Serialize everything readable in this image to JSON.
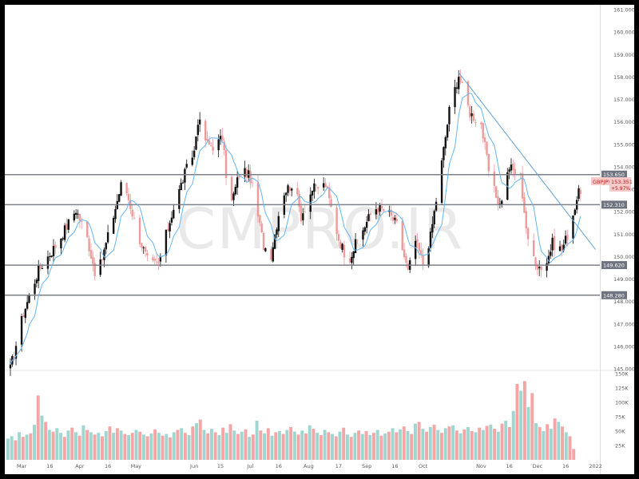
{
  "watermark": "CMPRO.IR",
  "colors": {
    "up": "#ef9a9a",
    "down": "#111111",
    "up_volume": "#f4a6a6",
    "down_volume": "#9fd6cf",
    "ma": "#64b5f6",
    "trendline": "#5f9fd6",
    "level_line": "#7e8088",
    "level_tag": "#6f7380",
    "price_tag": "#f7c9c9"
  },
  "price_tag": {
    "symbol": "GBPJPY",
    "price": "153.351",
    "change": "+5.97%"
  },
  "chart_data": [
    {
      "type": "candlestick",
      "description": "GBP/JPY daily candles",
      "ylim": [
        145.0,
        161.0
      ],
      "yticks": [
        145,
        146,
        147,
        148,
        149,
        150,
        151,
        152,
        153,
        154,
        155,
        156,
        157,
        158,
        159,
        160,
        161
      ],
      "ytick_labels": [
        "145.000",
        "146.000",
        "147.000",
        "148.000",
        "149.000",
        "150.000",
        "151.000",
        "152.000",
        "153.000",
        "154.000",
        "155.000",
        "156.000",
        "157.000",
        "158.000",
        "159.000",
        "160.000",
        "161.000"
      ],
      "xtick_labels": [
        "Mar",
        "16",
        "Apr",
        "16",
        "May",
        "Jun",
        "15",
        "Jul",
        "16",
        "Aug",
        "17",
        "Sep",
        "16",
        "Oct",
        "Nov",
        "16",
        "Dec",
        "16",
        "2022"
      ],
      "horizontal_levels": [
        {
          "value": 153.65,
          "label": "153.650"
        },
        {
          "value": 152.31,
          "label": "152.310"
        },
        {
          "value": 149.62,
          "label": "149.620"
        },
        {
          "value": 148.28,
          "label": "148.280"
        }
      ],
      "trendline": {
        "from": {
          "date": "Oct 20",
          "price": 158.2
        },
        "to": {
          "date": "Dec 26",
          "price": 150.6
        }
      },
      "anchors": [
        [
          "Feb 23",
          145.0
        ],
        [
          "Mar 2",
          147.5
        ],
        [
          "Mar 10",
          149.4
        ],
        [
          "Mar 20",
          150.6
        ],
        [
          "Mar 30",
          152.1
        ],
        [
          "Apr 5",
          150.8
        ],
        [
          "Apr 10",
          149.0
        ],
        [
          "Apr 18",
          151.5
        ],
        [
          "Apr 24",
          153.5
        ],
        [
          "May 2",
          151.0
        ],
        [
          "May 8",
          149.6
        ],
        [
          "May 13",
          149.7
        ],
        [
          "May 20",
          151.9
        ],
        [
          "May 27",
          153.7
        ],
        [
          "Jun 1",
          154.7
        ],
        [
          "Jun 3",
          156.1
        ],
        [
          "Jun 8",
          155.0
        ],
        [
          "Jun 12",
          154.9
        ],
        [
          "Jun 16",
          155.3
        ],
        [
          "Jun 20",
          152.1
        ],
        [
          "Jun 26",
          154.0
        ],
        [
          "Jul 1",
          153.5
        ],
        [
          "Jul 8",
          150.5
        ],
        [
          "Jul 12",
          150.1
        ],
        [
          "Jul 18",
          152.8
        ],
        [
          "Jul 24",
          153.3
        ],
        [
          "Jul 28",
          151.8
        ],
        [
          "Aug 3",
          153.0
        ],
        [
          "Aug 10",
          153.2
        ],
        [
          "Aug 17",
          150.8
        ],
        [
          "Aug 22",
          149.8
        ],
        [
          "Aug 28",
          150.9
        ],
        [
          "Sep 5",
          152.2
        ],
        [
          "Sep 12",
          152.0
        ],
        [
          "Sep 17",
          151.4
        ],
        [
          "Sep 23",
          149.3
        ],
        [
          "Sep 27",
          150.7
        ],
        [
          "Oct 1",
          149.7
        ],
        [
          "Oct 5",
          150.9
        ],
        [
          "Oct 10",
          153.6
        ],
        [
          "Oct 15",
          156.5
        ],
        [
          "Oct 20",
          158.1
        ],
        [
          "Oct 26",
          156.4
        ],
        [
          "Nov 1",
          155.9
        ],
        [
          "Nov 6",
          153.3
        ],
        [
          "Nov 11",
          152.3
        ],
        [
          "Nov 16",
          154.0
        ],
        [
          "Nov 22",
          153.5
        ],
        [
          "Nov 26",
          150.6
        ],
        [
          "Dec 1",
          149.6
        ],
        [
          "Dec 5",
          149.5
        ],
        [
          "Dec 9",
          150.6
        ],
        [
          "Dec 14",
          150.3
        ],
        [
          "Dec 18",
          151.2
        ],
        [
          "Dec 22",
          152.6
        ],
        [
          "Dec 26",
          153.4
        ]
      ]
    },
    {
      "type": "bar",
      "description": "daily volume",
      "ylim": [
        0,
        150000
      ],
      "yticks": [
        25000,
        50000,
        75000,
        100000,
        125000,
        150000
      ],
      "ytick_labels": [
        "25K",
        "50K",
        "75K",
        "100K",
        "125K",
        "150K"
      ],
      "bars": [
        [
          37000,
          "d"
        ],
        [
          41000,
          "d"
        ],
        [
          34000,
          "u"
        ],
        [
          48000,
          "d"
        ],
        [
          40000,
          "u"
        ],
        [
          44000,
          "d"
        ],
        [
          46000,
          "u"
        ],
        [
          61000,
          "d"
        ],
        [
          112000,
          "u"
        ],
        [
          77000,
          "d"
        ],
        [
          66000,
          "u"
        ],
        [
          52000,
          "d"
        ],
        [
          49000,
          "u"
        ],
        [
          55000,
          "d"
        ],
        [
          47000,
          "d"
        ],
        [
          40000,
          "u"
        ],
        [
          51000,
          "d"
        ],
        [
          56000,
          "u"
        ],
        [
          48000,
          "d"
        ],
        [
          42000,
          "u"
        ],
        [
          60000,
          "d"
        ],
        [
          52000,
          "u"
        ],
        [
          48000,
          "d"
        ],
        [
          44000,
          "u"
        ],
        [
          47000,
          "d"
        ],
        [
          41000,
          "u"
        ],
        [
          50000,
          "d"
        ],
        [
          58000,
          "u"
        ],
        [
          47000,
          "d"
        ],
        [
          55000,
          "u"
        ],
        [
          51000,
          "d"
        ],
        [
          45000,
          "u"
        ],
        [
          43000,
          "d"
        ],
        [
          47000,
          "u"
        ],
        [
          52000,
          "d"
        ],
        [
          49000,
          "u"
        ],
        [
          44000,
          "d"
        ],
        [
          41000,
          "u"
        ],
        [
          46000,
          "d"
        ],
        [
          53000,
          "u"
        ],
        [
          47000,
          "d"
        ],
        [
          42000,
          "u"
        ],
        [
          45000,
          "d"
        ],
        [
          39000,
          "u"
        ],
        [
          48000,
          "d"
        ],
        [
          52000,
          "u"
        ],
        [
          55000,
          "d"
        ],
        [
          47000,
          "u"
        ],
        [
          43000,
          "d"
        ],
        [
          58000,
          "u"
        ],
        [
          64000,
          "d"
        ],
        [
          70000,
          "u"
        ],
        [
          52000,
          "d"
        ],
        [
          46000,
          "u"
        ],
        [
          54000,
          "d"
        ],
        [
          48000,
          "u"
        ],
        [
          43000,
          "d"
        ],
        [
          56000,
          "u"
        ],
        [
          47000,
          "d"
        ],
        [
          62000,
          "u"
        ],
        [
          51000,
          "d"
        ],
        [
          45000,
          "u"
        ],
        [
          49000,
          "d"
        ],
        [
          53000,
          "u"
        ],
        [
          40000,
          "d"
        ],
        [
          44000,
          "u"
        ],
        [
          68000,
          "d"
        ],
        [
          51000,
          "u"
        ],
        [
          46000,
          "d"
        ],
        [
          55000,
          "u"
        ],
        [
          42000,
          "d"
        ],
        [
          48000,
          "u"
        ],
        [
          50000,
          "d"
        ],
        [
          45000,
          "u"
        ],
        [
          52000,
          "d"
        ],
        [
          57000,
          "u"
        ],
        [
          49000,
          "d"
        ],
        [
          44000,
          "u"
        ],
        [
          51000,
          "d"
        ],
        [
          46000,
          "u"
        ],
        [
          60000,
          "d"
        ],
        [
          54000,
          "u"
        ],
        [
          47000,
          "d"
        ],
        [
          43000,
          "u"
        ],
        [
          52000,
          "d"
        ],
        [
          48000,
          "u"
        ],
        [
          45000,
          "d"
        ],
        [
          41000,
          "u"
        ],
        [
          49000,
          "d"
        ],
        [
          56000,
          "u"
        ],
        [
          44000,
          "d"
        ],
        [
          40000,
          "u"
        ],
        [
          47000,
          "d"
        ],
        [
          51000,
          "u"
        ],
        [
          45000,
          "d"
        ],
        [
          50000,
          "u"
        ],
        [
          43000,
          "d"
        ],
        [
          47000,
          "u"
        ],
        [
          52000,
          "d"
        ],
        [
          42000,
          "u"
        ],
        [
          46000,
          "d"
        ],
        [
          49000,
          "u"
        ],
        [
          55000,
          "d"
        ],
        [
          48000,
          "u"
        ],
        [
          53000,
          "d"
        ],
        [
          58000,
          "u"
        ],
        [
          50000,
          "d"
        ],
        [
          45000,
          "u"
        ],
        [
          63000,
          "d"
        ],
        [
          66000,
          "u"
        ],
        [
          54000,
          "d"
        ],
        [
          49000,
          "u"
        ],
        [
          57000,
          "d"
        ],
        [
          61000,
          "u"
        ],
        [
          52000,
          "d"
        ],
        [
          47000,
          "u"
        ],
        [
          55000,
          "d"
        ],
        [
          58000,
          "u"
        ],
        [
          60000,
          "d"
        ],
        [
          51000,
          "u"
        ],
        [
          46000,
          "d"
        ],
        [
          53000,
          "u"
        ],
        [
          57000,
          "d"
        ],
        [
          50000,
          "u"
        ],
        [
          48000,
          "d"
        ],
        [
          56000,
          "u"
        ],
        [
          52000,
          "d"
        ],
        [
          59000,
          "u"
        ],
        [
          61000,
          "d"
        ],
        [
          54000,
          "u"
        ],
        [
          49000,
          "d"
        ],
        [
          63000,
          "u"
        ],
        [
          68000,
          "d"
        ],
        [
          57000,
          "u"
        ],
        [
          85000,
          "d"
        ],
        [
          132000,
          "u"
        ],
        [
          120000,
          "d"
        ],
        [
          137000,
          "u"
        ],
        [
          92000,
          "d"
        ],
        [
          116000,
          "u"
        ],
        [
          64000,
          "d"
        ],
        [
          57000,
          "u"
        ],
        [
          50000,
          "d"
        ],
        [
          62000,
          "u"
        ],
        [
          54000,
          "d"
        ],
        [
          72000,
          "u"
        ],
        [
          66000,
          "d"
        ],
        [
          58000,
          "u"
        ],
        [
          48000,
          "d"
        ],
        [
          41000,
          "u"
        ],
        [
          19000,
          "u"
        ]
      ]
    }
  ]
}
